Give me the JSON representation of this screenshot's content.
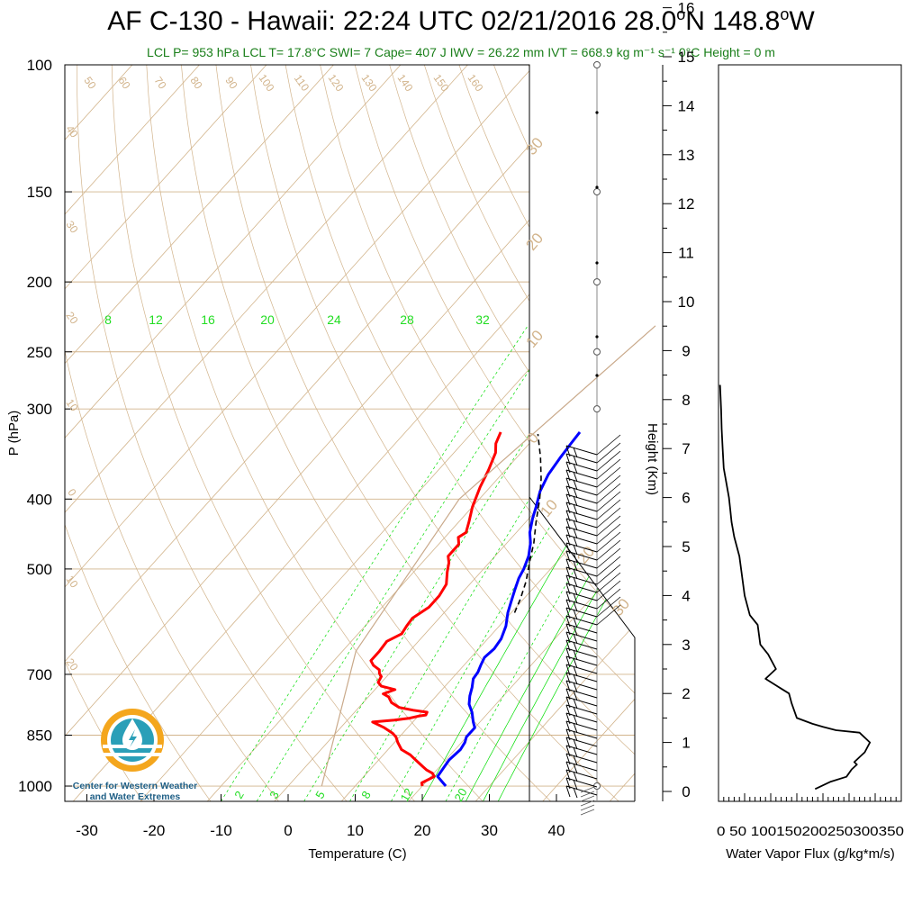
{
  "title": {
    "prefix": "AF C-130 - Hawaii: 22:24 UTC 02/21/2016  28.0",
    "lat_deg": "o",
    "lat_rest": "N 148.8",
    "lon_deg": "o",
    "lon_rest": "W"
  },
  "subtitle": "LCL P= 953 hPa  LCL T= 17.8°C  SWI= 7  Cape= 407 J  IWV = 26.22 mm  IVT = 668.9 kg m⁻¹ s⁻¹  0°C Height = 0 m",
  "logo": {
    "line1": "Center for Western Weather",
    "line2": "and Water Extremes",
    "icon": "water-drop-sun-icon"
  },
  "colors": {
    "temperature": "#ff0000",
    "dewpoint": "#0000ff",
    "isotherm": "#d2b48c",
    "mixing_ratio": "#00dd00",
    "parcel": "#000000",
    "flux": "#000000",
    "subtitle": "#1a7f1a"
  },
  "chart_data": [
    {
      "type": "line",
      "name": "skew-t",
      "xlabel": "Temperature (C)",
      "ylabel": "P (hPa)",
      "y2label": "Height (Km)",
      "y_scale": "log",
      "xlim": [
        -33,
        52
      ],
      "ylim": [
        1050,
        100
      ],
      "x_ticks": [
        -30,
        -20,
        -10,
        0,
        10,
        20,
        30,
        40
      ],
      "y_ticks": [
        100,
        150,
        200,
        250,
        300,
        400,
        500,
        700,
        850,
        1000
      ],
      "height_ticks": [
        0,
        1,
        2,
        3,
        4,
        5,
        6,
        7,
        8,
        9,
        10,
        11,
        12,
        13,
        14,
        15,
        16
      ],
      "mixing_ratio_labels_top": [
        "8",
        "12",
        "16",
        "20",
        "24",
        "28",
        "32"
      ],
      "mixing_ratio_labels_bottom": [
        "2",
        "3",
        "5",
        "8",
        "12",
        "20"
      ],
      "theta_labels": [
        "50",
        "60",
        "70",
        "80",
        "90",
        "100",
        "110",
        "120",
        "130",
        "140",
        "150",
        "160"
      ],
      "isotherm_labels_left": [
        "40",
        "30",
        "20",
        "10",
        "0",
        "10",
        "20"
      ],
      "isotherm_labels_right": [
        "30",
        "20",
        "10",
        "0",
        "10",
        "20",
        "30"
      ],
      "series": [
        {
          "name": "temperature",
          "points": [
            [
              1000,
              20.0
            ],
            [
              990,
              19.5
            ],
            [
              970,
              20.5
            ],
            [
              960,
              19.8
            ],
            [
              950,
              18.5
            ],
            [
              940,
              17.5
            ],
            [
              920,
              15.5
            ],
            [
              905,
              14.0
            ],
            [
              890,
              12.0
            ],
            [
              870,
              10.5
            ],
            [
              855,
              9.5
            ],
            [
              845,
              8.5
            ],
            [
              830,
              6.5
            ],
            [
              815,
              4.0
            ],
            [
              810,
              7.0
            ],
            [
              805,
              9.0
            ],
            [
              800,
              10.0
            ],
            [
              797,
              11.0
            ],
            [
              790,
              10.8
            ],
            [
              785,
              8.5
            ],
            [
              778,
              6.0
            ],
            [
              766,
              4.2
            ],
            [
              752,
              3.0
            ],
            [
              745,
              1.8
            ],
            [
              735,
              3.0
            ],
            [
              727,
              0.5
            ],
            [
              718,
              -0.5
            ],
            [
              705,
              -0.8
            ],
            [
              698,
              -1.5
            ],
            [
              690,
              -2.0
            ],
            [
              680,
              -3.5
            ],
            [
              670,
              -4.5
            ],
            [
              650,
              -4.5
            ],
            [
              630,
              -4.7
            ],
            [
              615,
              -3.5
            ],
            [
              600,
              -3.8
            ],
            [
              585,
              -4.0
            ],
            [
              565,
              -3.0
            ],
            [
              545,
              -3.0
            ],
            [
              525,
              -3.5
            ],
            [
              505,
              -5.0
            ],
            [
              490,
              -6.0
            ],
            [
              480,
              -7.0
            ],
            [
              462,
              -7.0
            ],
            [
              452,
              -8.0
            ],
            [
              445,
              -7.5
            ],
            [
              430,
              -8.5
            ],
            [
              410,
              -10.0
            ],
            [
              385,
              -11.5
            ],
            [
              365,
              -12.5
            ],
            [
              345,
              -13.8
            ],
            [
              335,
              -15.0
            ],
            [
              323,
              -15.8
            ]
          ]
        },
        {
          "name": "dewpoint",
          "points": [
            [
              1000,
              23.5
            ],
            [
              970,
              21.0
            ],
            [
              950,
              20.8
            ],
            [
              920,
              20.5
            ],
            [
              890,
              20.8
            ],
            [
              870,
              20.5
            ],
            [
              855,
              20.0
            ],
            [
              830,
              20.0
            ],
            [
              815,
              19.0
            ],
            [
              790,
              17.5
            ],
            [
              770,
              16.0
            ],
            [
              750,
              15.0
            ],
            [
              730,
              14.2
            ],
            [
              710,
              13.2
            ],
            [
              695,
              13.0
            ],
            [
              680,
              12.5
            ],
            [
              663,
              12.0
            ],
            [
              645,
              12.3
            ],
            [
              625,
              12.0
            ],
            [
              600,
              11.0
            ],
            [
              575,
              9.5
            ],
            [
              555,
              8.5
            ],
            [
              535,
              7.5
            ],
            [
              515,
              6.5
            ],
            [
              500,
              6.0
            ],
            [
              480,
              5.0
            ],
            [
              460,
              3.5
            ],
            [
              445,
              2.0
            ],
            [
              425,
              0.5
            ],
            [
              410,
              -0.5
            ],
            [
              390,
              -2.0
            ],
            [
              370,
              -3.0
            ],
            [
              350,
              -3.5
            ],
            [
              335,
              -3.8
            ],
            [
              323,
              -4.0
            ]
          ]
        },
        {
          "name": "parcel",
          "points": [
            [
              575,
              10.5
            ],
            [
              550,
              9.5
            ],
            [
              520,
              8.0
            ],
            [
              490,
              6.0
            ],
            [
              460,
              4.0
            ],
            [
              430,
              1.5
            ],
            [
              400,
              -1.0
            ],
            [
              375,
              -3.5
            ],
            [
              350,
              -6.5
            ],
            [
              325,
              -10.0
            ]
          ]
        },
        {
          "name": "isotherm_trace",
          "points": [
            [
              230,
              -7
            ],
            [
              400,
              -13
            ],
            [
              650,
              -8
            ],
            [
              1000,
              5
            ]
          ]
        }
      ],
      "wind_profile_pressures": [
        1000,
        300,
        250,
        200,
        150,
        100
      ]
    },
    {
      "type": "line",
      "name": "water-vapor-flux",
      "xlabel": "Water Vapor Flux (g/kg*m/s)",
      "ylabel": "",
      "xlim": [
        0,
        350
      ],
      "ylim": [
        0,
        16.3
      ],
      "x_ticks": [
        0,
        50,
        100,
        150,
        200,
        250,
        300,
        350
      ],
      "x_tick_label_text": "0 50 100150200250300350",
      "y_ticks": [
        0,
        1,
        2,
        3,
        4,
        5,
        6,
        7,
        8,
        9,
        10,
        11,
        12,
        13,
        14,
        15,
        16
      ],
      "x": [
        185,
        215,
        245,
        255,
        265,
        260,
        270,
        280,
        285,
        290,
        270,
        225,
        200,
        180,
        150,
        140,
        135,
        120,
        90,
        110,
        95,
        80,
        75,
        60,
        55,
        50,
        45,
        40,
        30,
        25,
        22,
        20,
        15,
        10,
        8,
        6,
        5,
        3
      ],
      "y": [
        0.05,
        0.2,
        0.3,
        0.45,
        0.55,
        0.6,
        0.7,
        0.8,
        0.9,
        1.0,
        1.2,
        1.25,
        1.32,
        1.38,
        1.5,
        1.8,
        2.0,
        2.1,
        2.3,
        2.5,
        2.8,
        3.0,
        3.4,
        3.6,
        3.8,
        4.0,
        4.4,
        4.8,
        5.2,
        5.5,
        5.8,
        6.0,
        6.3,
        6.6,
        7.0,
        7.4,
        7.8,
        8.3
      ]
    }
  ]
}
